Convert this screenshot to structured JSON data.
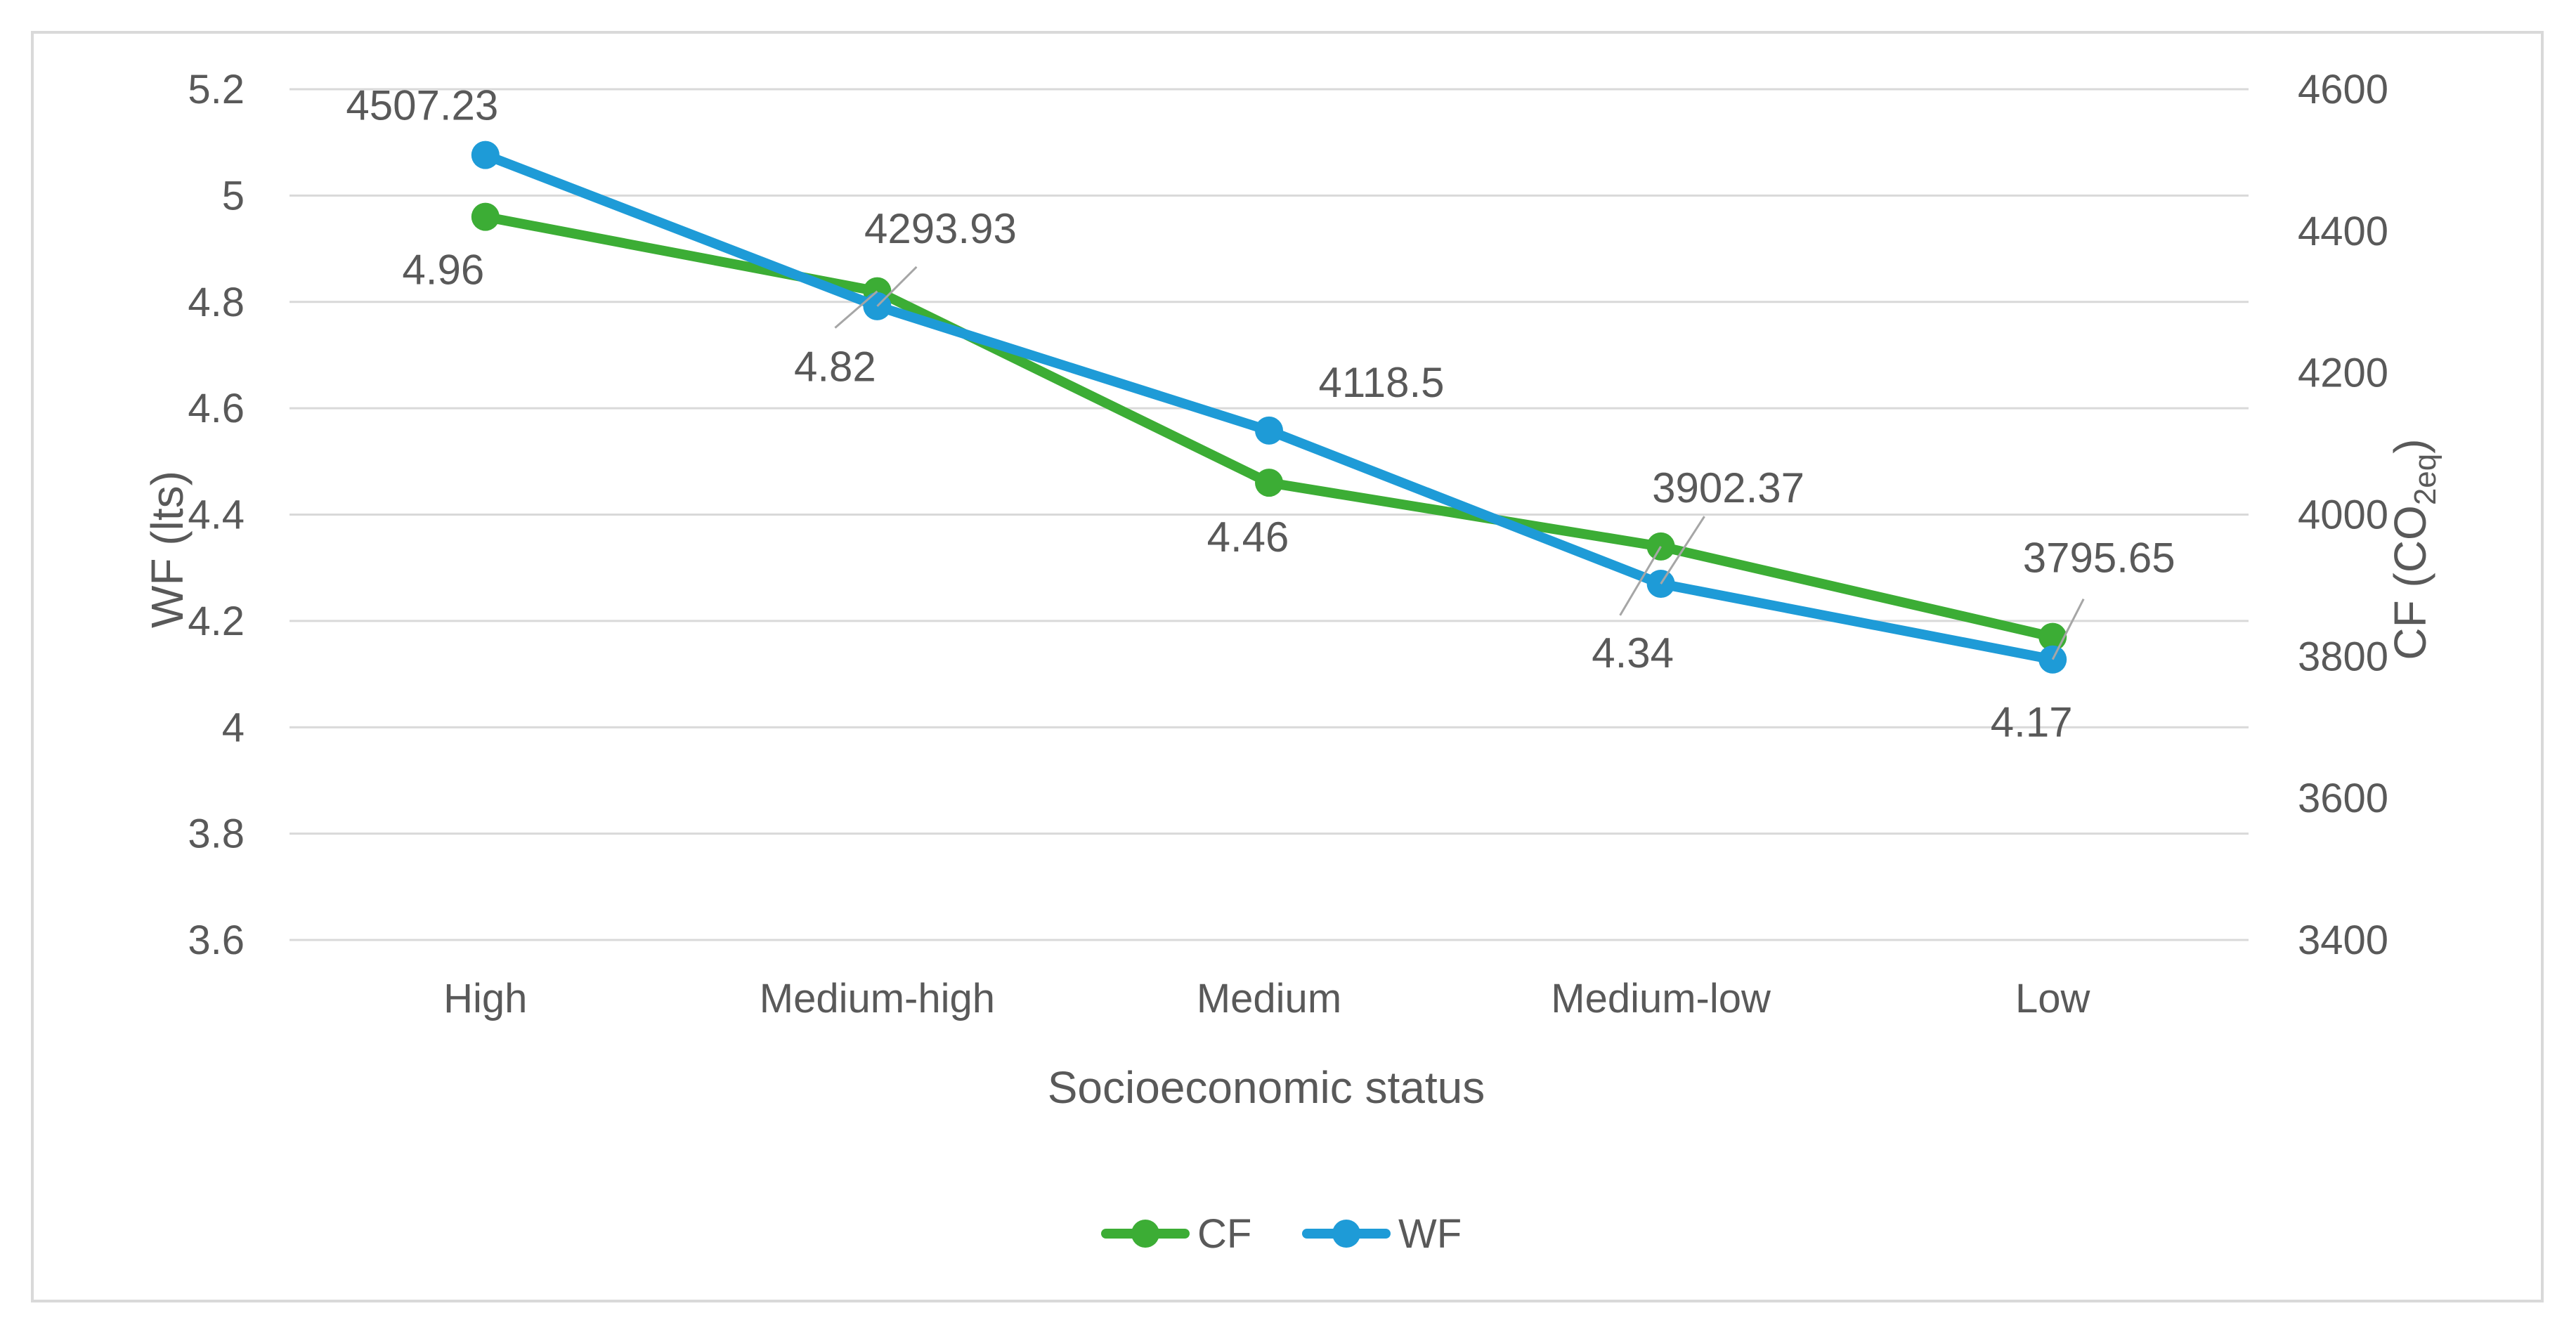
{
  "chart_data": {
    "type": "line",
    "title": "",
    "categories": [
      "High",
      "Medium-high",
      "Medium",
      "Medium-low",
      "Low"
    ],
    "xlabel": "Socioeconomic status",
    "ylabel_left": "WF (lts)",
    "ylabel_right_main": "CF (CO",
    "ylabel_right_sub": "2eq",
    "ylabel_right_close": ")",
    "ylim_left": [
      3.6,
      5.2
    ],
    "yticks_left": [
      "5.2",
      "5",
      "4.8",
      "4.6",
      "4.4",
      "4.2",
      "4",
      "3.8",
      "3.6"
    ],
    "ylim_right": [
      3400,
      4600
    ],
    "yticks_right": [
      "4600",
      "4400",
      "4200",
      "4000",
      "3800",
      "3600",
      "3400"
    ],
    "grid": true,
    "legend_position": "bottom",
    "series": [
      {
        "name": "CF",
        "color": "#3cad35",
        "axis": "left",
        "values": [
          4.96,
          4.82,
          4.46,
          4.34,
          4.17
        ],
        "labels": [
          "4.96",
          "4.82",
          "4.46",
          "4.34",
          "4.17"
        ]
      },
      {
        "name": "WF",
        "color": "#1e9bd7",
        "axis": "right",
        "values": [
          4507.23,
          4293.93,
          4118.5,
          3902.37,
          3795.65
        ],
        "labels": [
          "4507.23",
          "4293.93",
          "4118.5",
          "3902.37",
          "3795.65"
        ]
      }
    ]
  }
}
